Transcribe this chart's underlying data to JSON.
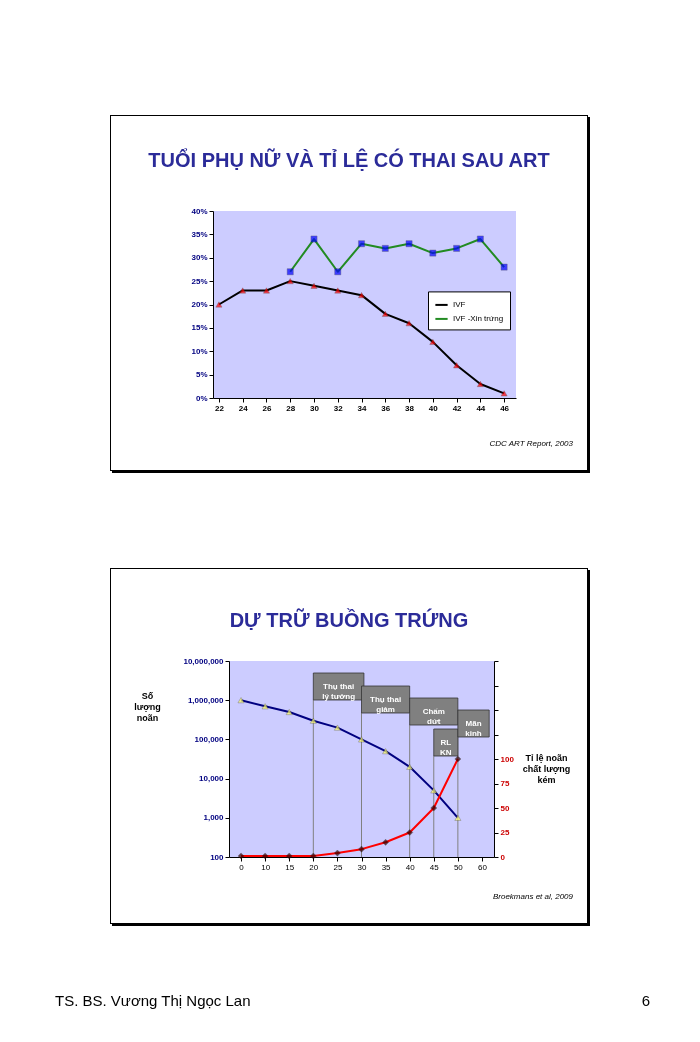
{
  "chart_data": [
    {
      "type": "line",
      "title": "TUỔI PHỤ NỮ VÀ TỈ LỆ CÓ THAI SAU ART",
      "xlim": [
        21.5,
        47
      ],
      "xticks": [
        22,
        24,
        26,
        28,
        30,
        32,
        34,
        36,
        38,
        40,
        42,
        44,
        46
      ],
      "ylim": [
        0,
        40
      ],
      "yticks": [
        {
          "value": 0,
          "label": "0%"
        },
        {
          "value": 5,
          "label": "5%"
        },
        {
          "value": 10,
          "label": "10%"
        },
        {
          "value": 15,
          "label": "15%"
        },
        {
          "value": 20,
          "label": "20%"
        },
        {
          "value": 25,
          "label": "25%"
        },
        {
          "value": 30,
          "label": "30%"
        },
        {
          "value": 35,
          "label": "35%"
        },
        {
          "value": 40,
          "label": "40%"
        }
      ],
      "legend": "right",
      "series": [
        {
          "name": "IVF",
          "color": "#000000",
          "marker": "triangle",
          "colors": [
            "#ff0000",
            "#ff0000",
            "#ff0000",
            "#ff0000",
            "#ff0000",
            "#ff0000",
            "#ff0000",
            "#ff0000",
            "#ff0000",
            "#ff0000",
            "#ff0000",
            "#ff0000",
            "#ff0000"
          ],
          "x": [
            22,
            24,
            26,
            28,
            30,
            32,
            34,
            36,
            38,
            40,
            42,
            44,
            46
          ],
          "values": [
            20,
            23,
            23,
            25,
            24,
            23,
            22,
            18,
            16,
            12,
            7,
            3,
            1
          ]
        },
        {
          "name": "IVF -Xin trứng",
          "color": "#228b22",
          "marker": "square",
          "colors": [
            "#0000ff",
            "#0000ff",
            "#0000ff",
            "#0000ff",
            "#0000ff",
            "#0000ff",
            "#0000ff",
            "#0000ff",
            "#0000ff",
            "#0000ff"
          ],
          "x": [
            28,
            30,
            32,
            34,
            36,
            38,
            40,
            42,
            44,
            46
          ],
          "values": [
            27,
            34,
            27,
            33,
            32,
            33,
            31,
            32,
            34,
            28
          ]
        }
      ],
      "annotations": [
        "CDC ART Report, 2003"
      ]
    },
    {
      "type": "line",
      "title": "DỰ TRỮ BUỒNG TRỨNG",
      "ylabel": "Số lượng noãn",
      "y2label": "Tỉ lệ noãn chất lượng kém",
      "categories": [
        "0",
        "10",
        "15",
        "20",
        "25",
        "30",
        "35",
        "40",
        "45",
        "50",
        "60"
      ],
      "log": "y",
      "ylim": [
        100,
        10000000
      ],
      "yticks": [
        {
          "value": 100,
          "label": "100"
        },
        {
          "value": 1000,
          "label": "1,000"
        },
        {
          "value": 10000,
          "label": "10,000"
        },
        {
          "value": 100000,
          "label": "100,000"
        },
        {
          "value": 1000000,
          "label": "1,000,000"
        },
        {
          "value": 10000000,
          "label": "10,000,000"
        }
      ],
      "y2lim": [
        0,
        200
      ],
      "y2ticks": [
        0,
        25,
        50,
        75,
        100,
        {
          "value": 125,
          "label": null
        },
        {
          "value": 150,
          "label": null
        },
        {
          "value": 175,
          "label": null
        },
        {
          "value": 200,
          "label": null
        }
      ],
      "series": [
        {
          "color": "#000080",
          "marker": "triangle",
          "colors": [
            "#ffff66",
            "#ffff66",
            "#ffff66",
            "#ffff66",
            "#ffff66",
            "#ffff66",
            "#ffff66",
            "#ffff66",
            "#ffff66",
            "#ffff66",
            "#ffff66"
          ],
          "values": [
            1000000,
            700000,
            500000,
            300000,
            200000,
            100000,
            50000,
            20000,
            5000,
            1000,
            null
          ]
        },
        {
          "color": "#ff0000",
          "marker": "diamond",
          "colors": [
            "#330000",
            "#330000",
            "#330000",
            "#330000",
            "#330000",
            "#330000",
            "#330000",
            "#330000",
            "#330000",
            "#330000",
            "#330000"
          ],
          "axis": "y2",
          "values": [
            1,
            1,
            1,
            1,
            4,
            8,
            15,
            25,
            50,
            100,
            null
          ]
        }
      ],
      "ref_lines": [
        {
          "axis": "x",
          "value": "20",
          "label": "Thụ thai lý tưởng",
          "color": "#808080"
        },
        {
          "axis": "x",
          "value": "30",
          "label": "Thụ thai giảm",
          "color": "#808080"
        },
        {
          "axis": "x",
          "value": "40",
          "label": "Chấm dứt",
          "color": "#808080"
        },
        {
          "axis": "x",
          "value": "45",
          "label": "RL KN",
          "color": "#808080"
        },
        {
          "axis": "x",
          "value": "50",
          "label": "Mãn kinh",
          "color": "#808080"
        }
      ],
      "annotations": [
        "Broekmans et al, 2009",
        "TS. BS. Vương Thị Ngọc Lan",
        "6"
      ]
    }
  ]
}
